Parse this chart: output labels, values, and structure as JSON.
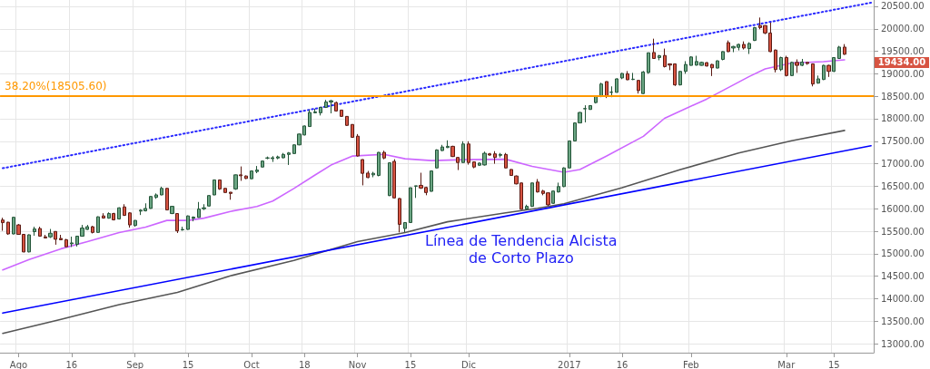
{
  "chart_data": {
    "type": "candlestick",
    "categories": [
      null,
      null,
      null,
      "Ago",
      null,
      null,
      null,
      null,
      null,
      null,
      null,
      null,
      null,
      "16",
      null,
      null,
      null,
      null,
      null,
      null,
      null,
      null,
      null,
      null,
      null,
      "Sep",
      null,
      null,
      null,
      null,
      null,
      null,
      null,
      null,
      null,
      "15",
      null,
      null,
      null,
      null,
      null,
      null,
      null,
      null,
      null,
      null,
      null,
      "Oct",
      null,
      null,
      null,
      null,
      null,
      null,
      null,
      null,
      null,
      "18",
      null,
      null,
      null,
      null,
      null,
      null,
      null,
      null,
      null,
      "Nov",
      null,
      null,
      null,
      null,
      null,
      null,
      null,
      null,
      null,
      "15",
      null,
      null,
      null,
      null,
      null,
      null,
      null,
      null,
      null,
      null,
      "Dic",
      null,
      null,
      null,
      null,
      null,
      null,
      null,
      null,
      null,
      null,
      null,
      null,
      null,
      null,
      null,
      null,
      null,
      null,
      "2017",
      null,
      null,
      null,
      null,
      null,
      null,
      null,
      null,
      null,
      "16",
      null,
      null,
      null,
      null,
      null,
      null,
      null,
      null,
      null,
      null,
      null,
      null,
      "Feb",
      null,
      null,
      null,
      null,
      null,
      null,
      null,
      null,
      null,
      null,
      null,
      null,
      null,
      null,
      null,
      null,
      null,
      "Mar",
      null,
      null,
      null,
      null,
      null,
      null,
      null,
      null,
      "15",
      null,
      null,
      null,
      null,
      null,
      null,
      null
    ],
    "ohlc": [
      [
        15750,
        15800,
        15510,
        15690
      ],
      [
        15700,
        15710,
        15420,
        15440
      ],
      [
        15440,
        15820,
        15430,
        15810
      ],
      [
        15640,
        15660,
        15420,
        15430
      ],
      [
        15430,
        15440,
        15030,
        15040
      ],
      [
        15040,
        15430,
        15030,
        15420
      ],
      [
        15490,
        15600,
        15400,
        15550
      ],
      [
        15560,
        15600,
        15380,
        15390
      ],
      [
        15375,
        15420,
        15340,
        15350
      ],
      [
        15375,
        15550,
        15350,
        15455
      ],
      [
        15495,
        15500,
        15200,
        15320
      ],
      [
        15340,
        15420,
        15300,
        15310
      ],
      [
        15310,
        15330,
        15150,
        15155
      ],
      [
        15220,
        15380,
        15150,
        15240
      ],
      [
        15210,
        15400,
        15160,
        15390
      ],
      [
        15390,
        15640,
        15380,
        15570
      ],
      [
        15540,
        15640,
        15530,
        15600
      ],
      [
        15600,
        15620,
        15450,
        15473
      ],
      [
        15473,
        15830,
        15470,
        15820
      ],
      [
        15840,
        15900,
        15780,
        15793
      ],
      [
        15790,
        15920,
        15780,
        15893
      ],
      [
        15893,
        15910,
        15740,
        15753
      ],
      [
        15773,
        16030,
        15760,
        16020
      ],
      [
        16040,
        16100,
        15840,
        15853
      ],
      [
        15907,
        15920,
        15580,
        15640
      ],
      [
        15627,
        15750,
        15600,
        15740
      ],
      [
        15947,
        15990,
        15860,
        15967
      ],
      [
        15953,
        16120,
        15940,
        16007
      ],
      [
        16007,
        16280,
        16000,
        16273
      ],
      [
        16253,
        16340,
        16220,
        16307
      ],
      [
        16307,
        16490,
        16300,
        16453
      ],
      [
        16453,
        16460,
        15970,
        15973
      ],
      [
        15893,
        16060,
        15880,
        16053
      ],
      [
        15893,
        15900,
        15460,
        15507
      ],
      [
        15530,
        15600,
        15510,
        15540
      ],
      [
        15540,
        15850,
        15530,
        15840
      ],
      [
        15787,
        15830,
        15720,
        15813
      ],
      [
        15807,
        16150,
        15800,
        15993
      ],
      [
        16000,
        16100,
        15970,
        16020
      ],
      [
        16060,
        16300,
        16050,
        16293
      ],
      [
        16307,
        16650,
        16300,
        16640
      ],
      [
        16640,
        16650,
        16420,
        16440
      ],
      [
        16453,
        16460,
        16360,
        16360
      ],
      [
        16367,
        16370,
        16200,
        16340
      ],
      [
        16440,
        16760,
        16420,
        16753
      ],
      [
        16753,
        16940,
        16620,
        16733
      ],
      [
        16727,
        16740,
        16660,
        16673
      ],
      [
        16667,
        16850,
        16660,
        16840
      ],
      [
        16827,
        16950,
        16790,
        16860
      ],
      [
        16927,
        17070,
        16920,
        17060
      ],
      [
        17125,
        17160,
        17100,
        17130
      ],
      [
        17113,
        17170,
        17040,
        17133
      ],
      [
        17127,
        17180,
        17100,
        17153
      ],
      [
        17133,
        17240,
        17120,
        17207
      ],
      [
        17207,
        17260,
        16973,
        17240
      ],
      [
        17227,
        17430,
        17220,
        17420
      ],
      [
        17420,
        17670,
        17410,
        17660
      ],
      [
        17640,
        17850,
        17630,
        17840
      ],
      [
        17827,
        18200,
        17820,
        18140
      ],
      [
        18133,
        18220,
        18120,
        18153
      ],
      [
        18133,
        18260,
        18073,
        18253
      ],
      [
        18253,
        18420,
        18240,
        18373
      ],
      [
        18373,
        18420,
        18120,
        18400
      ],
      [
        18360,
        18380,
        18160,
        18173
      ],
      [
        18193,
        18200,
        18040,
        18053
      ],
      [
        18053,
        18060,
        17840,
        17853
      ],
      [
        17873,
        17880,
        17580,
        17587
      ],
      [
        17613,
        17660,
        17160,
        17173
      ],
      [
        17093,
        17100,
        16520,
        16787
      ],
      [
        16793,
        16840,
        16680,
        16693
      ],
      [
        16753,
        16820,
        16700,
        16787
      ],
      [
        16740,
        17260,
        16720,
        17253
      ],
      [
        17253,
        17290,
        17100,
        17127
      ],
      [
        16293,
        17030,
        16280,
        17020
      ],
      [
        17053,
        17100,
        16230,
        16240
      ],
      [
        16227,
        16240,
        15473,
        15653
      ],
      [
        15560,
        15700,
        15480,
        15693
      ],
      [
        15693,
        16470,
        15690,
        16467
      ],
      [
        16500,
        16510,
        16240,
        16510
      ],
      [
        16520,
        16800,
        16440,
        16460
      ],
      [
        16473,
        16490,
        16300,
        16360
      ],
      [
        16387,
        16850,
        16380,
        16840
      ],
      [
        16907,
        17320,
        16900,
        17307
      ],
      [
        17293,
        17420,
        17280,
        17373
      ],
      [
        17360,
        17520,
        17350,
        17387
      ],
      [
        17387,
        17400,
        17150,
        17160
      ],
      [
        17140,
        17150,
        16860,
        17027
      ],
      [
        17027,
        17500,
        17020,
        17440
      ],
      [
        17440,
        17500,
        16980,
        17027
      ],
      [
        17040,
        17050,
        16900,
        16927
      ],
      [
        16967,
        17030,
        16950,
        17013
      ],
      [
        16973,
        17270,
        16960,
        17233
      ],
      [
        17220,
        17240,
        17180,
        17193
      ],
      [
        17220,
        17280,
        17000,
        17140
      ],
      [
        17187,
        17240,
        17140,
        17207
      ],
      [
        17207,
        17240,
        16900,
        16907
      ],
      [
        16873,
        16880,
        16730,
        16740
      ],
      [
        16727,
        16740,
        16540,
        16553
      ],
      [
        16573,
        16580,
        15980,
        15987
      ],
      [
        15993,
        16090,
        15980,
        16053
      ],
      [
        16053,
        16580,
        16040,
        16573
      ],
      [
        16593,
        16660,
        16360,
        16373
      ],
      [
        16393,
        16420,
        16300,
        16340
      ],
      [
        16353,
        16360,
        16060,
        16087
      ],
      [
        16120,
        16400,
        16110,
        16393
      ],
      [
        16373,
        16580,
        16360,
        16493
      ],
      [
        16493,
        16920,
        16480,
        16907
      ],
      [
        16907,
        17510,
        16900,
        17507
      ],
      [
        17507,
        17920,
        17500,
        17907
      ],
      [
        17907,
        18150,
        17900,
        18140
      ],
      [
        18220,
        18300,
        17920,
        18227
      ],
      [
        18207,
        18300,
        18200,
        18293
      ],
      [
        18360,
        18520,
        18340,
        18507
      ],
      [
        18493,
        18800,
        18480,
        18773
      ],
      [
        18827,
        18830,
        18460,
        18493
      ],
      [
        18587,
        18720,
        18480,
        18593
      ],
      [
        18587,
        18900,
        18580,
        18887
      ],
      [
        18907,
        19020,
        18880,
        19007
      ],
      [
        19000,
        19060,
        18860,
        18867
      ],
      [
        18873,
        19020,
        18860,
        18880
      ],
      [
        18853,
        18860,
        18560,
        18627
      ],
      [
        18560,
        19060,
        18550,
        19040
      ],
      [
        19027,
        19470,
        19000,
        19467
      ],
      [
        19473,
        19780,
        19330,
        19340
      ],
      [
        19360,
        19420,
        19300,
        19400
      ],
      [
        19407,
        19560,
        19140,
        19160
      ],
      [
        19220,
        19230,
        19080,
        19193
      ],
      [
        19220,
        19230,
        18730,
        18753
      ],
      [
        18753,
        19060,
        18740,
        19053
      ],
      [
        19053,
        19280,
        19000,
        19207
      ],
      [
        19187,
        19390,
        19180,
        19373
      ],
      [
        19193,
        19400,
        19180,
        19273
      ],
      [
        19187,
        19270,
        19180,
        19253
      ],
      [
        19247,
        19260,
        19160,
        19173
      ],
      [
        19207,
        19220,
        18950,
        19133
      ],
      [
        19127,
        19300,
        19120,
        19287
      ],
      [
        19320,
        19500,
        19300,
        19493
      ],
      [
        19693,
        19740,
        19480,
        19493
      ],
      [
        19573,
        19620,
        19480,
        19607
      ],
      [
        19587,
        19670,
        19520,
        19653
      ],
      [
        19653,
        19720,
        19540,
        19573
      ],
      [
        19560,
        19700,
        19440,
        19673
      ],
      [
        19740,
        20040,
        19730,
        20027
      ],
      [
        20073,
        20250,
        19990,
        20027
      ],
      [
        20073,
        20080,
        19880,
        19907
      ],
      [
        19907,
        20140,
        19480,
        19493
      ],
      [
        19527,
        19540,
        19030,
        19093
      ],
      [
        19093,
        19380,
        19060,
        19360
      ],
      [
        19360,
        19400,
        18940,
        18960
      ],
      [
        18960,
        19270,
        18950,
        19253
      ],
      [
        19253,
        19320,
        19020,
        19187
      ],
      [
        19187,
        19330,
        19170,
        19260
      ],
      [
        19253,
        19260,
        19200,
        19227
      ],
      [
        19220,
        19230,
        18720,
        18773
      ],
      [
        18793,
        18960,
        18780,
        18887
      ],
      [
        18873,
        19200,
        18860,
        19187
      ],
      [
        19187,
        19200,
        18930,
        19053
      ],
      [
        19053,
        19370,
        19040,
        19360
      ],
      [
        19340,
        19620,
        19330,
        19593
      ],
      [
        19593,
        19660,
        19420,
        19434
      ],
      null,
      null,
      null,
      null,
      null
    ],
    "series": [
      {
        "type": "line",
        "color": "#cc66ff",
        "values": [
          14640,
          null,
          null,
          null,
          null,
          14870,
          null,
          null,
          null,
          null,
          null,
          15110,
          null,
          null,
          null,
          null,
          15270,
          null,
          null,
          null,
          null,
          null,
          15470,
          null,
          null,
          null,
          null,
          15590,
          null,
          null,
          null,
          15740,
          null,
          null,
          null,
          15740,
          null,
          null,
          15790,
          null,
          null,
          null,
          null,
          15940,
          null,
          null,
          null,
          null,
          16050,
          null,
          null,
          16170,
          null,
          null,
          null,
          16450,
          null,
          null,
          null,
          16750,
          null,
          null,
          16970,
          null,
          null,
          null,
          17170,
          null,
          null,
          null,
          null,
          null,
          17210,
          null,
          null,
          null,
          17110,
          null,
          null,
          null,
          null,
          17070,
          null,
          null,
          null,
          null,
          null,
          17090,
          null,
          null,
          null,
          null,
          null,
          null,
          null,
          17100,
          null,
          null,
          null,
          null,
          16940,
          null,
          null,
          null,
          null,
          null,
          16810,
          null,
          null,
          16870,
          null,
          null,
          null,
          null,
          17170,
          null,
          null,
          null,
          null,
          null,
          null,
          17610,
          null,
          null,
          null,
          18010,
          null,
          null,
          null,
          null,
          null,
          null,
          null,
          18440,
          null,
          null,
          null,
          null,
          null,
          null,
          null,
          18940,
          null,
          null,
          19110,
          null,
          null,
          null,
          null,
          19240,
          null,
          null,
          null,
          null,
          null,
          19270,
          null,
          null,
          null,
          19310,
          null,
          null,
          null,
          null,
          null
        ]
      },
      {
        "type": "line",
        "color": "#555555",
        "values": [
          13230,
          null,
          null,
          null,
          null,
          null,
          null,
          null,
          null,
          null,
          null,
          13540,
          null,
          null,
          null,
          null,
          null,
          null,
          null,
          null,
          null,
          null,
          13870,
          null,
          null,
          null,
          null,
          null,
          null,
          null,
          null,
          null,
          null,
          14140,
          null,
          null,
          null,
          null,
          null,
          null,
          null,
          null,
          null,
          14510,
          null,
          null,
          null,
          null,
          null,
          null,
          null,
          null,
          null,
          null,
          null,
          14850,
          null,
          null,
          null,
          null,
          null,
          null,
          null,
          null,
          null,
          null,
          null,
          15270,
          null,
          null,
          null,
          null,
          null,
          null,
          null,
          null,
          15470,
          null,
          null,
          null,
          null,
          null,
          null,
          null,
          15710,
          null,
          null,
          null,
          null,
          null,
          null,
          null,
          null,
          null,
          null,
          15910,
          null,
          null,
          null,
          null,
          null,
          16010,
          null,
          null,
          null,
          null,
          16110,
          null,
          null,
          null,
          null,
          null,
          null,
          null,
          null,
          null,
          null,
          16470,
          null,
          null,
          null,
          null,
          null,
          null,
          null,
          null,
          null,
          null,
          16870,
          null,
          null,
          null,
          null,
          null,
          null,
          null,
          null,
          null,
          null,
          17240,
          null,
          null,
          null,
          null,
          null,
          null,
          null,
          null,
          null,
          17510,
          null,
          null,
          null,
          null,
          null,
          null,
          null,
          null,
          null,
          17740,
          null,
          null,
          null,
          null,
          null
        ]
      },
      {
        "type": "line",
        "color": "#0000ff",
        "values": [
          13680,
          null,
          null,
          null,
          null,
          null,
          null,
          null,
          null,
          null,
          null,
          null,
          null,
          null,
          null,
          null,
          null,
          null,
          null,
          null,
          null,
          null,
          null,
          null,
          null,
          null,
          null,
          null,
          null,
          null,
          null,
          null,
          null,
          null,
          null,
          null,
          null,
          null,
          null,
          null,
          null,
          null,
          null,
          null,
          null,
          null,
          null,
          null,
          null,
          null,
          null,
          null,
          null,
          null,
          null,
          null,
          null,
          null,
          null,
          null,
          null,
          null,
          null,
          null,
          null,
          null,
          null,
          null,
          null,
          null,
          null,
          null,
          null,
          null,
          null,
          null,
          null,
          null,
          null,
          null,
          null,
          null,
          null,
          null,
          null,
          null,
          null,
          null,
          null,
          null,
          null,
          null,
          null,
          null,
          null,
          null,
          null,
          null,
          null,
          null,
          null,
          null,
          null,
          null,
          null,
          null,
          null,
          null,
          null,
          null,
          null,
          null,
          null,
          null,
          null,
          null,
          null,
          null,
          null,
          null,
          null,
          null,
          null,
          null,
          null,
          null,
          null,
          null,
          null,
          null,
          null,
          null,
          null,
          null,
          null,
          null,
          null,
          null,
          null,
          null,
          null,
          null,
          null,
          null,
          null,
          null,
          null,
          null,
          null,
          null,
          null,
          null,
          null,
          null,
          null,
          null,
          null,
          null,
          null,
          null,
          null,
          null,
          null,
          null,
          17400
        ]
      },
      {
        "type": "line",
        "color": "#2929ff",
        "line_style": "dotted",
        "values": [
          16900,
          null,
          null,
          null,
          null,
          null,
          null,
          null,
          null,
          null,
          null,
          null,
          null,
          null,
          null,
          null,
          null,
          null,
          null,
          null,
          null,
          null,
          null,
          null,
          null,
          null,
          null,
          null,
          null,
          null,
          null,
          null,
          null,
          null,
          null,
          null,
          null,
          null,
          null,
          null,
          null,
          null,
          null,
          null,
          null,
          null,
          null,
          null,
          null,
          null,
          null,
          null,
          null,
          null,
          null,
          null,
          null,
          null,
          null,
          null,
          null,
          null,
          null,
          null,
          null,
          null,
          null,
          null,
          null,
          null,
          null,
          null,
          null,
          null,
          null,
          null,
          null,
          null,
          null,
          null,
          null,
          null,
          null,
          null,
          null,
          null,
          null,
          null,
          null,
          null,
          null,
          null,
          null,
          null,
          null,
          null,
          null,
          null,
          null,
          null,
          null,
          null,
          null,
          null,
          null,
          null,
          null,
          null,
          null,
          null,
          null,
          null,
          null,
          null,
          null,
          null,
          null,
          null,
          null,
          null,
          null,
          null,
          null,
          null,
          null,
          null,
          null,
          null,
          null,
          null,
          null,
          null,
          null,
          null,
          null,
          null,
          null,
          null,
          null,
          null,
          null,
          null,
          null,
          null,
          null,
          null,
          null,
          null,
          null,
          null,
          null,
          null,
          null,
          null,
          null,
          null,
          null,
          null,
          null,
          null,
          null,
          null,
          null,
          null,
          20580
        ]
      }
    ],
    "ylim": [
      12800,
      20640
    ],
    "yticks": [
      {
        "value": 13000,
        "label": "13000.00"
      },
      {
        "value": 13500,
        "label": "13500.00"
      },
      {
        "value": 14000,
        "label": "14000.00"
      },
      {
        "value": 14500,
        "label": "14500.00"
      },
      {
        "value": 15000,
        "label": "15000.00"
      },
      {
        "value": 15500,
        "label": "15500.00"
      },
      {
        "value": 16000,
        "label": "16000.00"
      },
      {
        "value": 16500,
        "label": "16500.00"
      },
      {
        "value": 17000,
        "label": "17000.00"
      },
      {
        "value": 17500,
        "label": "17500.00"
      },
      {
        "value": 18000,
        "label": "18000.00"
      },
      {
        "value": 18500,
        "label": "18500.00"
      },
      {
        "value": 19000,
        "label": "19000.00"
      },
      {
        "value": 19500,
        "label": "19500.00"
      },
      {
        "value": 20000,
        "label": "20000.00"
      },
      {
        "value": 20500,
        "label": "20500.00"
      }
    ],
    "grid": true,
    "marker": "none",
    "ref_lines": [
      {
        "axis": "y",
        "value": 18505.6,
        "label": "38.20%(18505.60)",
        "color": "#ff9800"
      }
    ],
    "annotations": [
      "Línea de Tendencia Alcista\nde Corto Plazo",
      "19434.00"
    ]
  }
}
